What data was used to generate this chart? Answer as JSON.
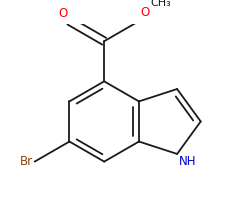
{
  "background_color": "#ffffff",
  "bond_color": "#1a1a1a",
  "bond_width": 1.3,
  "atom_colors": {
    "O": "#ff0000",
    "N": "#0000cc",
    "Br": "#8B4513",
    "C": "#1a1a1a"
  },
  "font_size": 8.5,
  "figsize": [
    2.4,
    2.0
  ],
  "dpi": 100
}
